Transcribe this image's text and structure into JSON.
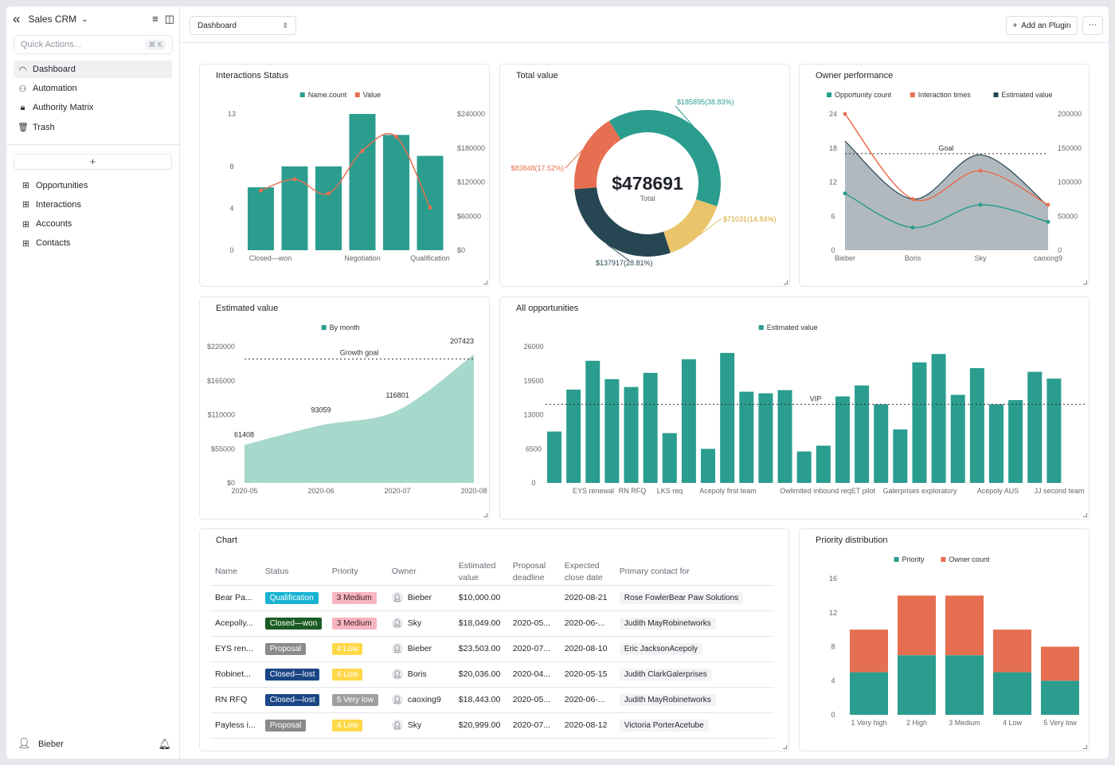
{
  "sidebar": {
    "app_title": "Sales CRM",
    "quick_placeholder": "Quick Actions...",
    "quick_shortcut": "⌘ K",
    "nav": [
      {
        "label": "Dashboard",
        "icon": "dashboard-icon"
      },
      {
        "label": "Automation",
        "icon": "automation-icon"
      },
      {
        "label": "Authority Matrix",
        "icon": "lock-icon"
      },
      {
        "label": "Trash",
        "icon": "trash-icon"
      }
    ],
    "add_label": "+",
    "tables": [
      {
        "label": "Opportunities"
      },
      {
        "label": "Interactions"
      },
      {
        "label": "Accounts"
      },
      {
        "label": "Contacts"
      }
    ],
    "user_name": "Bieber"
  },
  "topbar": {
    "dashboard_select": "Dashboard",
    "add_plugin_label": "Add an Plugin",
    "more_label": "···"
  },
  "cards": {
    "interactions_status": "Interactions Status",
    "total_value": "Total value",
    "owner_performance": "Owner performance",
    "estimated_value": "Estimated value",
    "all_opportunities": "All opportunities",
    "table_chart": "Chart",
    "priority_distribution": "Priority distribution"
  },
  "colors": {
    "teal": "#2a9d8f",
    "orange": "#e76f51",
    "yellow": "#e9c46a",
    "navy": "#264653",
    "area_teal": "#a7d8cc",
    "area_gray": "#a9b1b8"
  },
  "chart_data": [
    {
      "id": "interactions_status",
      "type": "bar",
      "legend": [
        "Name.count",
        "Value"
      ],
      "categories": [
        "Closed—won",
        "",
        "",
        "Negotiation",
        "",
        "Qualification"
      ],
      "x_tick_labels": [
        "Closed—won",
        "Negotiation",
        "Qualification"
      ],
      "series": [
        {
          "name": "Name.count",
          "type": "bar",
          "values": [
            6,
            8,
            8,
            13,
            11,
            9
          ]
        },
        {
          "name": "Value",
          "type": "line",
          "values": [
            105000,
            125000,
            100000,
            175000,
            200000,
            75000
          ]
        }
      ],
      "y_left_ticks": [
        "0",
        "4",
        "8",
        "13"
      ],
      "y_right_ticks": [
        "$0",
        "$60000",
        "$120000",
        "$180000",
        "$240000"
      ],
      "ylim_left": [
        0,
        13
      ],
      "ylim_right": [
        0,
        240000
      ]
    },
    {
      "id": "total_value",
      "type": "pie",
      "center_value": "$478691",
      "center_label": "Total",
      "slices": [
        {
          "label": "$185895(38.83%)",
          "value": 185895,
          "color": "#2a9d8f"
        },
        {
          "label": "$71031(14.84%)",
          "value": 71031,
          "color": "#e9c46a"
        },
        {
          "label": "$137917(28.81%)",
          "value": 137917,
          "color": "#264653"
        },
        {
          "label": "$83848(17.52%)",
          "value": 83848,
          "color": "#e76f51"
        }
      ]
    },
    {
      "id": "owner_performance",
      "type": "area",
      "legend": [
        "Opportunity count",
        "Interaction times",
        "Estimated value"
      ],
      "categories": [
        "Bieber",
        "Boris",
        "Sky",
        "caoxing9"
      ],
      "series": [
        {
          "name": "Opportunity count",
          "values": [
            10,
            4,
            8,
            5
          ],
          "axis": "left"
        },
        {
          "name": "Interaction times",
          "values": [
            24,
            9,
            14,
            8
          ],
          "axis": "left"
        },
        {
          "name": "Estimated value",
          "values": [
            160000,
            75000,
            140000,
            65000
          ],
          "axis": "right"
        }
      ],
      "goal_label": "Goal",
      "goal_value": 17,
      "y_left_ticks": [
        "0",
        "6",
        "12",
        "18",
        "24"
      ],
      "y_right_ticks": [
        "0",
        "50000",
        "100000",
        "150000",
        "200000"
      ],
      "ylim_left": [
        0,
        24
      ],
      "ylim_right": [
        0,
        200000
      ]
    },
    {
      "id": "estimated_value",
      "type": "area",
      "legend": [
        "By month"
      ],
      "x_ticks": [
        "2020-05",
        "2020-06",
        "2020-07",
        "2020-08"
      ],
      "points": [
        {
          "x": "2020-05",
          "value": 61408,
          "label": "61408"
        },
        {
          "x": "2020-06",
          "value": 93059,
          "label": "93059"
        },
        {
          "x": "2020-07",
          "value": 116801,
          "label": "116801"
        },
        {
          "x": "2020-08",
          "value": 207423,
          "label": "207423"
        }
      ],
      "goal_label": "Growth goal",
      "goal_value": 200000,
      "y_ticks": [
        "$0",
        "$55000",
        "$110000",
        "$165000",
        "$220000"
      ],
      "ylim": [
        0,
        220000
      ]
    },
    {
      "id": "all_opportunities",
      "type": "bar",
      "legend": [
        "Estimated value"
      ],
      "values": [
        9800,
        17800,
        23300,
        19800,
        18300,
        21000,
        9500,
        23600,
        6500,
        24800,
        17400,
        17100,
        17700,
        6000,
        7100,
        16500,
        18600,
        15000,
        10200,
        23000,
        24600,
        16800,
        21900,
        15000,
        15800,
        21200,
        19900
      ],
      "x_tick_labels": [
        "EYS renewal",
        "RN RFQ",
        "LKS req",
        "Acepoly first team",
        "Owlimited inbound req",
        "ET pilot",
        "Galerprises exploratory",
        "Acepoly AUS",
        "JJ second team"
      ],
      "goal_label": "VIP",
      "goal_value": 15000,
      "y_ticks": [
        "0",
        "6500",
        "13000",
        "19500",
        "26000"
      ],
      "ylim": [
        0,
        26000
      ]
    },
    {
      "id": "priority_distribution",
      "type": "bar",
      "stacked": true,
      "legend": [
        "Priority",
        "Owner count"
      ],
      "categories": [
        "1 Very high",
        "2 High",
        "3 Medium",
        "4 Low",
        "5 Very low"
      ],
      "series": [
        {
          "name": "Priority",
          "values": [
            5,
            7,
            7,
            5,
            4
          ]
        },
        {
          "name": "Owner count",
          "values": [
            5,
            7,
            7,
            5,
            4
          ]
        }
      ],
      "y_ticks": [
        "0",
        "4",
        "8",
        "12",
        "16"
      ],
      "ylim": [
        0,
        16
      ]
    }
  ],
  "table": {
    "headers": [
      "Name",
      "Status",
      "Priority",
      "Owner",
      "Estimated value",
      "Proposal deadline",
      "Expected close date",
      "Primary contact for"
    ],
    "rows": [
      {
        "name": "Bear Pa...",
        "status": "Qualification",
        "status_color": "#17b3d1",
        "priority": "3 Medium",
        "priority_bg": "#f7b5c0",
        "priority_fg": "#3a1d22",
        "owner": "Bieber",
        "owner_icon": "person-icon",
        "value": "$10,000.00",
        "deadline": "",
        "close": "2020-08-21",
        "contact": "Rose FowlerBear Paw Solutions"
      },
      {
        "name": "Acepolly...",
        "status": "Closed—won",
        "status_color": "#1c5c24",
        "priority": "3 Medium",
        "priority_bg": "#f7b5c0",
        "priority_fg": "#3a1d22",
        "owner": "Sky",
        "owner_icon": "person-icon",
        "value": "$18,049.00",
        "deadline": "2020-05...",
        "close": "2020-06-...",
        "contact": "Judith MayRobinetworks"
      },
      {
        "name": "EYS ren...",
        "status": "Proposal",
        "status_color": "#8a8a8a",
        "priority": "4 Low",
        "priority_bg": "#ffd84a",
        "priority_fg": "#ffffff",
        "owner": "Bieber",
        "owner_icon": "person-icon",
        "value": "$23,503.00",
        "deadline": "2020-07...",
        "close": "2020-08-10",
        "contact": "Eric JacksonAcepoly"
      },
      {
        "name": "Robinet...",
        "status": "Closed—lost",
        "status_color": "#1a4685",
        "priority": "4 Low",
        "priority_bg": "#ffd84a",
        "priority_fg": "#ffffff",
        "owner": "Boris",
        "owner_icon": "person-icon",
        "value": "$20,036.00",
        "deadline": "2020-04...",
        "close": "2020-05-15",
        "contact": "Judith ClarkGalerprises"
      },
      {
        "name": "RN RFQ",
        "status": "Closed—lost",
        "status_color": "#1a4685",
        "priority": "5 Very low",
        "priority_bg": "#9e9e9e",
        "priority_fg": "#ffffff",
        "owner": "caoxing9",
        "owner_icon": "person-icon",
        "value": "$18,443.00",
        "deadline": "2020-05...",
        "close": "2020-06-...",
        "contact": "Judith MayRobinetworks"
      },
      {
        "name": "Payless i...",
        "status": "Proposal",
        "status_color": "#8a8a8a",
        "priority": "4 Low",
        "priority_bg": "#ffd84a",
        "priority_fg": "#ffffff",
        "owner": "Sky",
        "owner_icon": "person-icon",
        "value": "$20,999.00",
        "deadline": "2020-07...",
        "close": "2020-08-12",
        "contact": "Victoria PorterAcetube"
      }
    ]
  }
}
